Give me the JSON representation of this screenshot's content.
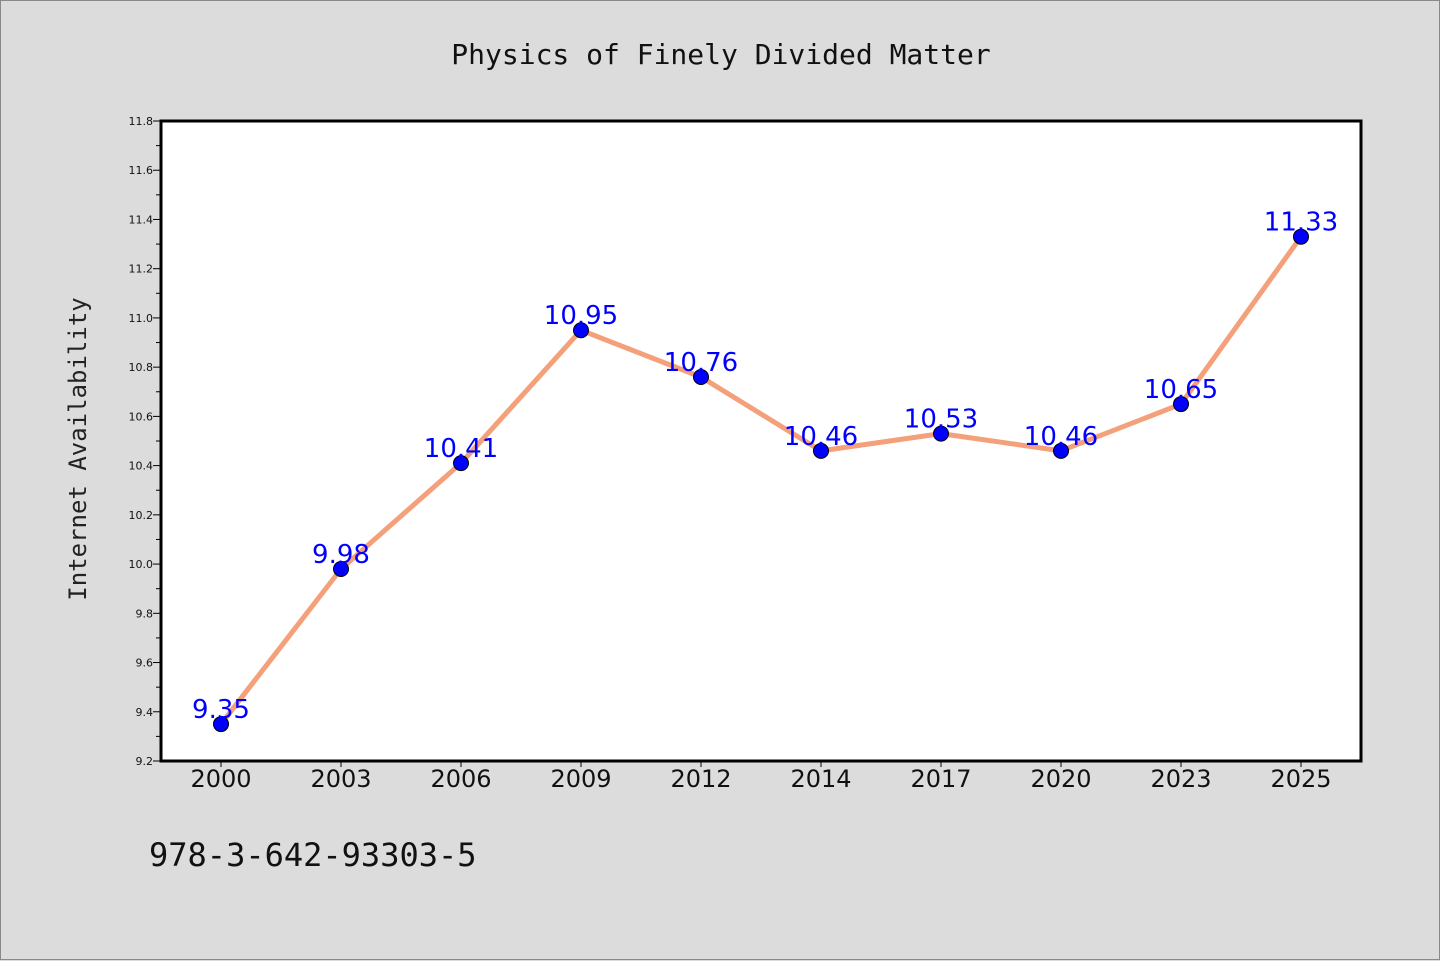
{
  "chart_data": {
    "type": "line",
    "title": "Physics of Finely Divided Matter",
    "xlabel": "",
    "ylabel": "Internet Availability",
    "categories": [
      "2000",
      "2003",
      "2006",
      "2009",
      "2012",
      "2014",
      "2017",
      "2020",
      "2023",
      "2025"
    ],
    "series": [
      {
        "values": [
          9.35,
          9.98,
          10.41,
          10.95,
          10.76,
          10.46,
          10.53,
          10.46,
          10.65,
          11.33
        ],
        "labels": [
          "9.35",
          "9.98",
          "10.41",
          "10.95",
          "10.76",
          "10.46",
          "10.53",
          "10.46",
          "10.65",
          "11.33"
        ],
        "line_color": "#f4a07a",
        "marker_color": "#0000ff"
      }
    ],
    "ylim": [
      9.2,
      11.8
    ],
    "yticks": [
      "9.2",
      "9.4",
      "9.6",
      "9.8",
      "10.0",
      "10.2",
      "10.4",
      "10.6",
      "10.8",
      "11.0",
      "11.2",
      "11.4",
      "11.6",
      "11.8"
    ],
    "grid": false,
    "background": "#dcdcdc",
    "plot_background": "#ffffff"
  },
  "footer": {
    "isbn": "978-3-642-93303-5"
  }
}
